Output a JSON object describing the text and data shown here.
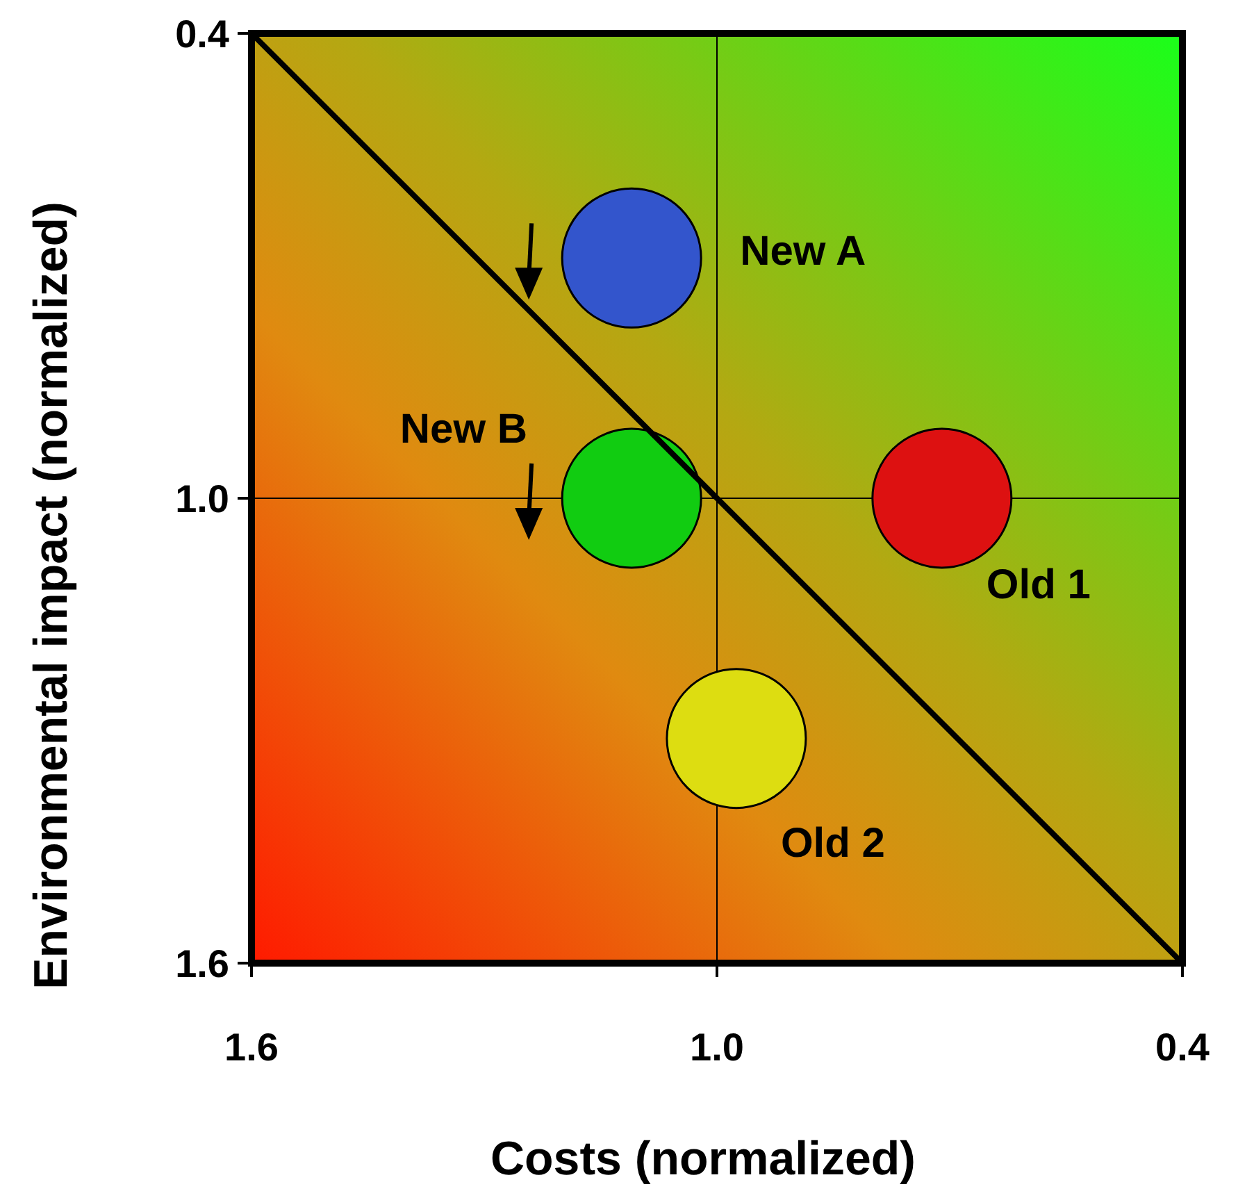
{
  "chart_data": {
    "type": "bubble",
    "xlabel": "Costs (normalized)",
    "ylabel": "Environmental impact (normalized)",
    "xlim": [
      1.6,
      0.4
    ],
    "ylim": [
      1.6,
      0.4
    ],
    "xticks": [
      1.6,
      {
        "value": 1,
        "label": "1.0"
      },
      0.4
    ],
    "yticks": [
      1.6,
      {
        "value": 1,
        "label": "1.0"
      },
      0.4
    ],
    "grid": true,
    "series": [
      {
        "name": "New A",
        "color": "#3355cc",
        "x": [
          1.11
        ],
        "values": [
          0.69
        ],
        "sizes": [
          1
        ]
      },
      {
        "name": "New B",
        "color": "#11cc11",
        "x": [
          1.11
        ],
        "values": [
          1.0
        ],
        "sizes": [
          1
        ]
      },
      {
        "name": "Old 1",
        "color": "#dd1111",
        "x": [
          0.71
        ],
        "values": [
          1.0
        ],
        "sizes": [
          1
        ]
      },
      {
        "name": "Old 2",
        "color": "#dddd11",
        "x": [
          0.975
        ],
        "values": [
          1.31
        ],
        "sizes": [
          1
        ]
      },
      {
        "type": "line",
        "color": "#000000",
        "x": [
          1.6,
          0.4
        ],
        "values": [
          0.4,
          1.6
        ]
      }
    ]
  }
}
